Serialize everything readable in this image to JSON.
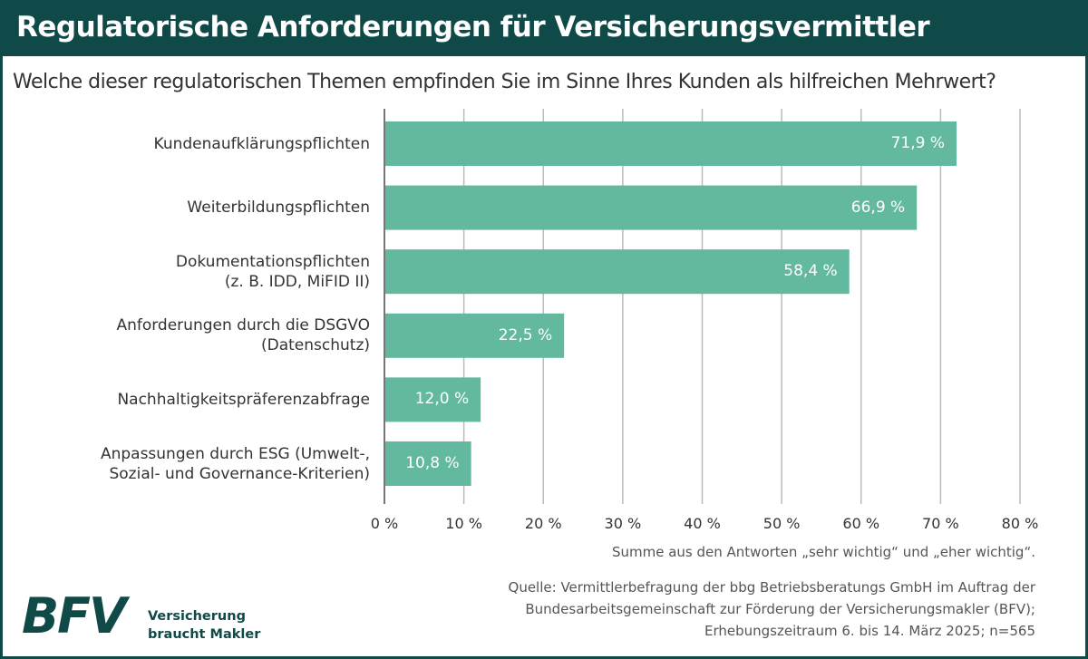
{
  "header": {
    "title": "Regulatorische Anforderungen für Versicherungsvermittler"
  },
  "question": "Welche dieser regulatorischen Themen empfinden Sie im Sinne Ihres Kunden als hilfreichen Mehrwert?",
  "chart_data": {
    "type": "bar",
    "orientation": "horizontal",
    "categories": [
      [
        "Kundenaufklärungspflichten"
      ],
      [
        "Weiterbildungspflichten"
      ],
      [
        "Dokumentationspflichten",
        "(z. B. IDD, MiFID II)"
      ],
      [
        "Anforderungen durch die DSGVO",
        "(Datenschutz)"
      ],
      [
        "Nachhaltigkeitspräferenzabfrage"
      ],
      [
        "Anpassungen durch ESG (Umwelt-,",
        "Sozial- und Governance-Kriterien)"
      ]
    ],
    "values": [
      71.9,
      66.9,
      58.4,
      22.5,
      12.0,
      10.8
    ],
    "value_labels": [
      "71,9 %",
      "66,9 %",
      "58,4 %",
      "22,5 %",
      "12,0 %",
      "10,8 %"
    ],
    "xlim": [
      0,
      80
    ],
    "xticks": [
      "0 %",
      "10 %",
      "20 %",
      "30 %",
      "40 %",
      "50 %",
      "60 %",
      "70 %",
      "80 %"
    ],
    "grid": true,
    "bar_color": "#63b8a0"
  },
  "note": "Summe aus den Antworten „sehr wichtig“ und „eher wichtig“.",
  "source": [
    "Quelle: Vermittlerbefragung der bbg Betriebsberatungs GmbH im Auftrag der",
    "Bundesarbeitsgemeinschaft zur Förderung der Versicherungsmakler (BFV);",
    "Erhebungszeitraum 6. bis 14. März 2025; n=565"
  ],
  "logo": {
    "mark": "BFV",
    "tagline": [
      "Versicherung",
      "braucht Makler"
    ]
  },
  "colors": {
    "brand": "#0f4a49",
    "bar": "#63b8a0"
  }
}
